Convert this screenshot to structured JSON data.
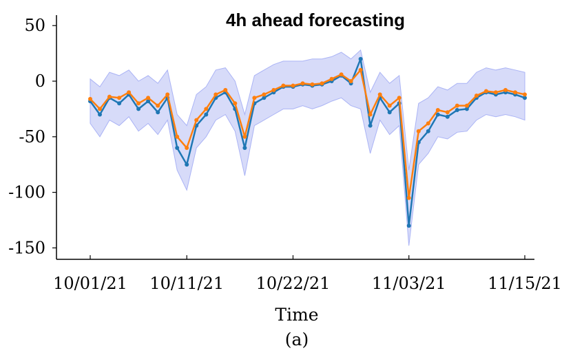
{
  "chart_data": {
    "type": "line",
    "title": "4h ahead forecasting",
    "xlabel": "Time",
    "ylabel": "",
    "caption": "(a)",
    "xlim": [
      "10/01/21",
      "11/15/21"
    ],
    "ylim": [
      -155,
      58
    ],
    "x_ticks": [
      "10/01/21",
      "10/11/21",
      "10/22/21",
      "11/03/21",
      "11/15/21"
    ],
    "y_ticks": [
      "50",
      "0",
      "-50",
      "-100",
      "-150"
    ],
    "y_tick_values": [
      50,
      0,
      -50,
      -100,
      -150
    ],
    "grid": false,
    "legend": "none",
    "colors": {
      "actual": "#1f77b4",
      "forecast": "#ff7f0e",
      "interval": "#c6ccf7"
    },
    "series": [
      {
        "role": "actual",
        "x": [
          "10/01/21",
          "10/02/21",
          "10/03/21",
          "10/04/21",
          "10/05/21",
          "10/06/21",
          "10/07/21",
          "10/08/21",
          "10/09/21",
          "10/10/21",
          "10/11/21",
          "10/12/21",
          "10/13/21",
          "10/14/21",
          "10/15/21",
          "10/16/21",
          "10/17/21",
          "10/18/21",
          "10/19/21",
          "10/20/21",
          "10/21/21",
          "10/22/21",
          "10/23/21",
          "10/24/21",
          "10/25/21",
          "10/26/21",
          "10/27/21",
          "10/28/21",
          "10/29/21",
          "10/30/21",
          "10/31/21",
          "11/01/21",
          "11/02/21",
          "11/03/21",
          "11/04/21",
          "11/05/21",
          "11/06/21",
          "11/07/21",
          "11/08/21",
          "11/09/21",
          "11/10/21",
          "11/11/21",
          "11/12/21",
          "11/13/21",
          "11/14/21",
          "11/15/21"
        ],
        "values": [
          -18,
          -30,
          -15,
          -20,
          -12,
          -25,
          -18,
          -28,
          -15,
          -60,
          -75,
          -40,
          -30,
          -15,
          -10,
          -25,
          -60,
          -20,
          -15,
          -10,
          -5,
          -5,
          -3,
          -4,
          -3,
          0,
          5,
          -2,
          20,
          -40,
          -15,
          -28,
          -20,
          -130,
          -55,
          -45,
          -30,
          -32,
          -26,
          -25,
          -15,
          -10,
          -12,
          -10,
          -12,
          -15
        ]
      },
      {
        "role": "forecast",
        "x": [
          "10/01/21",
          "10/02/21",
          "10/03/21",
          "10/04/21",
          "10/05/21",
          "10/06/21",
          "10/07/21",
          "10/08/21",
          "10/09/21",
          "10/10/21",
          "10/11/21",
          "10/12/21",
          "10/13/21",
          "10/14/21",
          "10/15/21",
          "10/16/21",
          "10/17/21",
          "10/18/21",
          "10/19/21",
          "10/20/21",
          "10/21/21",
          "10/22/21",
          "10/23/21",
          "10/24/21",
          "10/25/21",
          "10/26/21",
          "10/27/21",
          "10/28/21",
          "10/29/21",
          "10/30/21",
          "10/31/21",
          "11/01/21",
          "11/02/21",
          "11/03/21",
          "11/04/21",
          "11/05/21",
          "11/06/21",
          "11/07/21",
          "11/08/21",
          "11/09/21",
          "11/10/21",
          "11/11/21",
          "11/12/21",
          "11/13/21",
          "11/14/21",
          "11/15/21"
        ],
        "values": [
          -16,
          -25,
          -14,
          -15,
          -10,
          -20,
          -15,
          -22,
          -12,
          -50,
          -60,
          -35,
          -25,
          -12,
          -8,
          -20,
          -50,
          -15,
          -12,
          -8,
          -4,
          -4,
          -2,
          -3,
          -2,
          2,
          6,
          0,
          10,
          -30,
          -12,
          -22,
          -15,
          -105,
          -45,
          -38,
          -26,
          -28,
          -22,
          -22,
          -13,
          -9,
          -10,
          -8,
          -10,
          -12
        ]
      }
    ],
    "interval": {
      "x": [
        "10/01/21",
        "10/02/21",
        "10/03/21",
        "10/04/21",
        "10/05/21",
        "10/06/21",
        "10/07/21",
        "10/08/21",
        "10/09/21",
        "10/10/21",
        "10/11/21",
        "10/12/21",
        "10/13/21",
        "10/14/21",
        "10/15/21",
        "10/16/21",
        "10/17/21",
        "10/18/21",
        "10/19/21",
        "10/20/21",
        "10/21/21",
        "10/22/21",
        "10/23/21",
        "10/24/21",
        "10/25/21",
        "10/26/21",
        "10/27/21",
        "10/28/21",
        "10/29/21",
        "10/30/21",
        "10/31/21",
        "11/01/21",
        "11/02/21",
        "11/03/21",
        "11/04/21",
        "11/05/21",
        "11/06/21",
        "11/07/21",
        "11/08/21",
        "11/09/21",
        "11/10/21",
        "11/11/21",
        "11/12/21",
        "11/13/21",
        "11/14/21",
        "11/15/21"
      ],
      "upper": [
        2,
        -5,
        8,
        5,
        10,
        0,
        5,
        -2,
        10,
        -30,
        -40,
        -12,
        -5,
        10,
        12,
        0,
        -30,
        5,
        10,
        15,
        18,
        18,
        18,
        20,
        20,
        22,
        26,
        20,
        28,
        -10,
        8,
        -2,
        5,
        -80,
        -20,
        -15,
        -5,
        -8,
        -2,
        -2,
        8,
        12,
        10,
        12,
        10,
        8
      ],
      "lower": [
        -38,
        -50,
        -35,
        -40,
        -32,
        -45,
        -38,
        -48,
        -35,
        -80,
        -98,
        -60,
        -50,
        -35,
        -30,
        -45,
        -85,
        -40,
        -35,
        -30,
        -25,
        -25,
        -22,
        -25,
        -22,
        -18,
        -15,
        -22,
        -25,
        -65,
        -35,
        -48,
        -40,
        -148,
        -75,
        -65,
        -50,
        -52,
        -46,
        -45,
        -35,
        -30,
        -32,
        -30,
        -32,
        -35
      ]
    }
  }
}
